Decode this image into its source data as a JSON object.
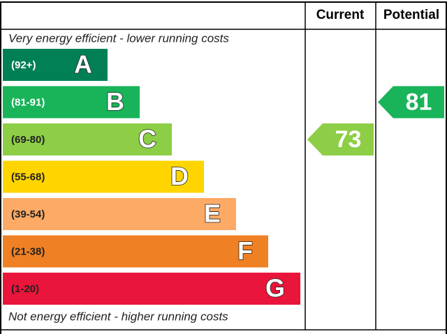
{
  "header": {
    "current": "Current",
    "potential": "Potential"
  },
  "top_note": "Very energy efficient - lower running costs",
  "bottom_note": "Not energy efficient - higher running costs",
  "bands": [
    {
      "letter": "A",
      "range": "(92+)",
      "color": "#008054"
    },
    {
      "letter": "B",
      "range": "(81-91)",
      "color": "#19b459"
    },
    {
      "letter": "C",
      "range": "(69-80)",
      "color": "#8dce46"
    },
    {
      "letter": "D",
      "range": "(55-68)",
      "color": "#ffd500"
    },
    {
      "letter": "E",
      "range": "(39-54)",
      "color": "#fcaa65"
    },
    {
      "letter": "F",
      "range": "(21-38)",
      "color": "#ef8023"
    },
    {
      "letter": "G",
      "range": "(1-20)",
      "color": "#e9153b"
    }
  ],
  "current": 73,
  "potential": 81
}
